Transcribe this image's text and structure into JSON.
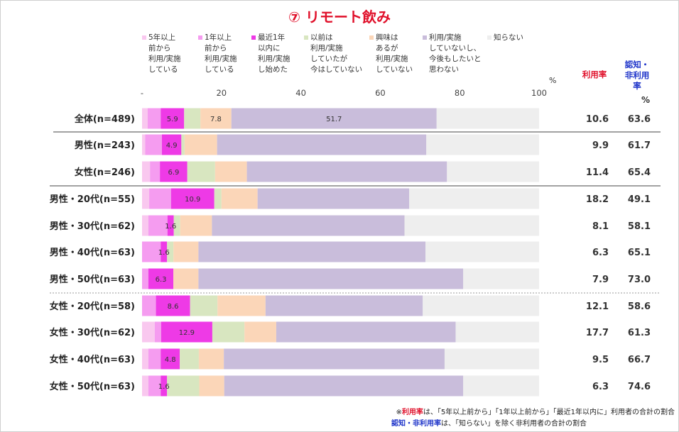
{
  "title": "⑦ リモート飲み",
  "legend": [
    {
      "label": "5年以上\n前から\n利用/実施\nしている",
      "color": "#f9c8ef"
    },
    {
      "label": "1年以上\n前から\n利用/実施\nしている",
      "color": "#f59cf0"
    },
    {
      "label": "最近1年\n以内に\n利用/実施\nし始めた",
      "color": "#ee3ae6"
    },
    {
      "label": "以前は\n利用/実施\nしていたが\n今はしていない",
      "color": "#d8e6c0"
    },
    {
      "label": "興味は\nあるが\n利用/実施\nしていない",
      "color": "#fbd6b8"
    },
    {
      "label": "利用/実施\nしていないし、\n今後もしたいと\n思わない",
      "color": "#c9bddb"
    },
    {
      "label": "知らない",
      "color": "#eeeeee"
    }
  ],
  "columns": {
    "usage": "利用率",
    "aware": "認知・\n非利用\n率",
    "pct_left": "%",
    "pct_right": "%"
  },
  "footnotes": {
    "line1_prefix": "※",
    "line1_em": "利用率",
    "line1_rest": "は、「5年以上前から」「1年以上前から」「最近1年以内に」利用者の合計の割合",
    "line2_em": "認知・非利用率",
    "line2_rest": "は、「知らない」を除く非利用者の合計の割合"
  },
  "chart_data": {
    "type": "bar",
    "orientation": "horizontal",
    "stacked": true,
    "xlim": [
      0,
      100
    ],
    "xticks": [
      "-",
      "20",
      "40",
      "60",
      "80",
      "100"
    ],
    "categories": [
      "全体(n=489)",
      "男性(n=243)",
      "女性(n=246)",
      "男性・20代(n=55)",
      "男性・30代(n=62)",
      "男性・40代(n=63)",
      "男性・50代(n=63)",
      "女性・20代(n=58)",
      "女性・30代(n=62)",
      "女性・40代(n=63)",
      "女性・50代(n=63)"
    ],
    "series": [
      {
        "name": "5年以上前から利用/実施している",
        "color": "#f9c8ef",
        "values": [
          1.4,
          0.8,
          2.0,
          1.8,
          1.6,
          0.0,
          0.0,
          0.0,
          3.2,
          1.6,
          1.6
        ]
      },
      {
        "name": "1年以上前から利用/実施している",
        "color": "#f59cf0",
        "values": [
          3.3,
          4.2,
          2.5,
          5.5,
          4.8,
          4.7,
          1.6,
          3.5,
          1.6,
          3.1,
          3.1
        ]
      },
      {
        "name": "最近1年以内に利用/実施し始めた",
        "color": "#ee3ae6",
        "values": [
          5.9,
          4.9,
          6.9,
          10.9,
          1.6,
          1.6,
          6.3,
          8.6,
          12.9,
          4.8,
          1.6
        ]
      },
      {
        "name": "以前は利用/実施していたが今はしていない",
        "color": "#d8e6c0",
        "values": [
          4.1,
          0.8,
          7.0,
          1.8,
          1.6,
          1.6,
          0.0,
          6.9,
          8.1,
          4.8,
          8.1
        ]
      },
      {
        "name": "興味はあるが利用/実施していない",
        "color": "#fbd6b8",
        "values": [
          7.8,
          8.2,
          8.0,
          9.1,
          8.0,
          6.3,
          6.3,
          12.1,
          8.0,
          6.3,
          6.3
        ]
      },
      {
        "name": "利用/実施していないし、今後もしたいと思わない",
        "color": "#c9bddb",
        "values": [
          51.7,
          52.7,
          50.4,
          38.2,
          48.5,
          57.2,
          66.7,
          39.6,
          45.2,
          55.6,
          60.2
        ]
      },
      {
        "name": "知らない",
        "color": "#eeeeee",
        "values": [
          25.8,
          28.4,
          23.2,
          32.7,
          33.9,
          28.6,
          19.1,
          29.3,
          21.0,
          23.8,
          19.1
        ]
      }
    ],
    "data_labels": [
      {
        "row": 0,
        "series": 2,
        "text": "5.9"
      },
      {
        "row": 0,
        "series": 4,
        "text": "7.8"
      },
      {
        "row": 0,
        "series": 5,
        "text": "51.7"
      },
      {
        "row": 1,
        "series": 2,
        "text": "4.9"
      },
      {
        "row": 2,
        "series": 2,
        "text": "6.9"
      },
      {
        "row": 3,
        "series": 2,
        "text": "10.9"
      },
      {
        "row": 4,
        "series": 2,
        "text": "1.6"
      },
      {
        "row": 5,
        "series": 2,
        "text": "1.6"
      },
      {
        "row": 6,
        "series": 2,
        "text": "6.3"
      },
      {
        "row": 7,
        "series": 2,
        "text": "8.6"
      },
      {
        "row": 8,
        "series": 2,
        "text": "12.9"
      },
      {
        "row": 9,
        "series": 2,
        "text": "4.8"
      },
      {
        "row": 10,
        "series": 2,
        "text": "1.6"
      }
    ],
    "usage_rate": [
      "10.6",
      "9.9",
      "11.4",
      "18.2",
      "8.1",
      "6.3",
      "7.9",
      "12.1",
      "17.7",
      "9.5",
      "6.3"
    ],
    "aware_nonuse_rate": [
      "63.6",
      "61.7",
      "65.4",
      "49.1",
      "58.1",
      "65.1",
      "73.0",
      "58.6",
      "61.3",
      "66.7",
      "74.6"
    ],
    "usage_color": "#e0102a",
    "aware_color": "#1d33c9"
  }
}
